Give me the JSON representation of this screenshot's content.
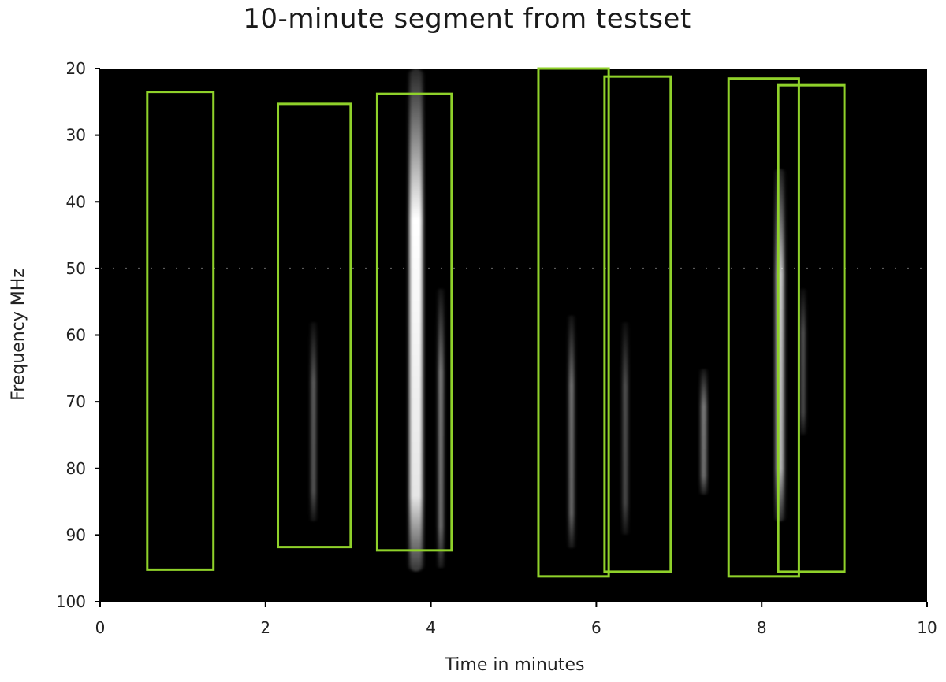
{
  "chart_data": {
    "type": "heatmap",
    "title": "10-minute segment from testset",
    "xlabel": "Time in minutes",
    "ylabel": "Frequency MHz",
    "xlim": [
      0,
      10
    ],
    "ylim": [
      100,
      20
    ],
    "y_inverted": true,
    "xticks": [
      0,
      2,
      4,
      6,
      8,
      10
    ],
    "yticks": [
      20,
      30,
      40,
      50,
      60,
      70,
      80,
      90,
      100
    ],
    "background_color": "#000000",
    "box_color": "#8fd12a",
    "boxes": [
      {
        "t_start": 0.57,
        "t_end": 1.37,
        "f_low": 23.5,
        "f_high": 95.2
      },
      {
        "t_start": 2.15,
        "t_end": 3.03,
        "f_low": 25.3,
        "f_high": 91.8
      },
      {
        "t_start": 3.35,
        "t_end": 4.25,
        "f_low": 23.8,
        "f_high": 92.3
      },
      {
        "t_start": 5.3,
        "t_end": 6.15,
        "f_low": 20.0,
        "f_high": 96.2
      },
      {
        "t_start": 6.1,
        "t_end": 6.9,
        "f_low": 21.2,
        "f_high": 95.5
      },
      {
        "t_start": 7.6,
        "t_end": 8.45,
        "f_low": 21.5,
        "f_high": 96.2
      },
      {
        "t_start": 8.2,
        "t_end": 9.0,
        "f_low": 22.5,
        "f_high": 95.5
      }
    ],
    "bursts": [
      {
        "t": 3.82,
        "f_low": 20,
        "f_high": 95.5,
        "intensity": 1.0,
        "width": 0.16
      },
      {
        "t": 4.12,
        "f_low": 53,
        "f_high": 95,
        "intensity": 0.55,
        "width": 0.06
      },
      {
        "t": 2.58,
        "f_low": 58,
        "f_high": 88,
        "intensity": 0.4,
        "width": 0.06
      },
      {
        "t": 5.7,
        "f_low": 57,
        "f_high": 92,
        "intensity": 0.5,
        "width": 0.06
      },
      {
        "t": 6.35,
        "f_low": 58,
        "f_high": 90,
        "intensity": 0.35,
        "width": 0.06
      },
      {
        "t": 8.22,
        "f_low": 35,
        "f_high": 88,
        "intensity": 0.8,
        "width": 0.1
      },
      {
        "t": 8.5,
        "f_low": 53,
        "f_high": 75,
        "intensity": 0.4,
        "width": 0.05
      },
      {
        "t": 7.3,
        "f_low": 65,
        "f_high": 84,
        "intensity": 0.5,
        "width": 0.07
      }
    ],
    "hline_mhz": 50
  }
}
